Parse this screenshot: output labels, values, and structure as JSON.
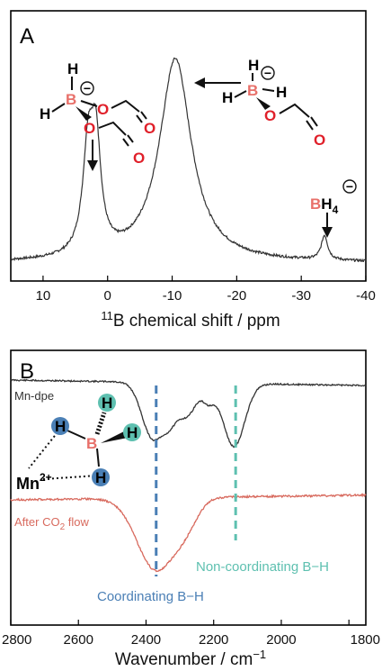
{
  "chart_data": [
    {
      "type": "line",
      "panel_label": "A",
      "xlabel_sup": "11",
      "xlabel_main": "B chemical shift / ppm",
      "xlim": [
        15,
        -40
      ],
      "x_ticks": [
        10,
        0,
        -10,
        -20,
        -30,
        -40
      ],
      "x_tick_labels": [
        "10",
        "0",
        "-10",
        "-20",
        "-30",
        "-40"
      ],
      "series": [
        {
          "color": "#333333",
          "peaks": [
            {
              "center": 3.0,
              "height": 0.5,
              "width": 1.0
            },
            {
              "center": 1.8,
              "height": 0.5,
              "width": 0.9
            },
            {
              "center": -10.5,
              "height": 1.0,
              "width": 3.0
            },
            {
              "center": -33.6,
              "height": 0.12,
              "width": 0.6
            }
          ]
        }
      ],
      "annotations": {
        "bh4_label": "BH",
        "bh4_sub": "4",
        "charge": "−"
      }
    },
    {
      "type": "line",
      "panel_label": "B",
      "xlabel": "Wavenumber / cm",
      "xlabel_sup": "−1",
      "xlim": [
        2800,
        1750
      ],
      "x_ticks": [
        2800,
        2600,
        2400,
        2200,
        2000,
        1800
      ],
      "x_tick_labels": [
        "2800",
        "2600",
        "2400",
        "2200",
        "2000",
        "1800"
      ],
      "series": [
        {
          "name": "Mn-dpe",
          "color": "#333333"
        },
        {
          "name": "After CO",
          "name_sub": "2",
          "name_suffix": " flow",
          "color": "#d86a5e"
        }
      ],
      "vlines": [
        {
          "x": 2370,
          "label": "Coordinating B−H",
          "color": "#4a7fb5"
        },
        {
          "x": 2135,
          "label": "Non-coordinating B−H",
          "color": "#5ec0b0"
        }
      ],
      "annotations": {
        "metal": "Mn",
        "metal_charge": "2+"
      }
    }
  ],
  "molecules": {
    "h": "H",
    "b": "B",
    "o": "O",
    "charge": "−"
  }
}
